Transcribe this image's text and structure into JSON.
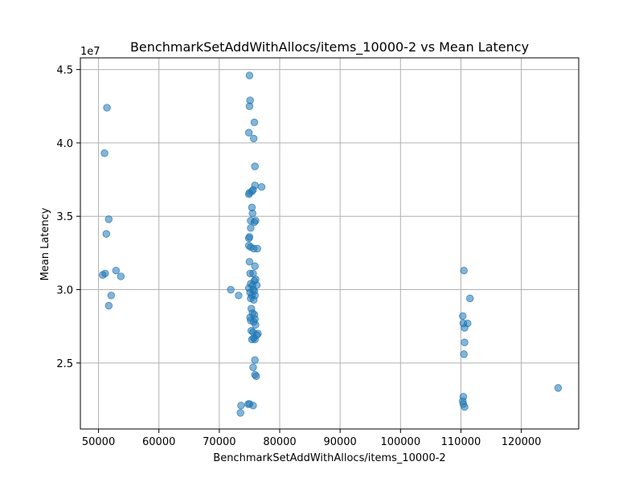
{
  "chart_data": {
    "type": "scatter",
    "title": "BenchmarkSetAddWithAllocs/items_10000-2 vs Mean Latency",
    "xlabel": "BenchmarkSetAddWithAllocs/items_10000-2",
    "ylabel": "Mean Latency",
    "y_offset_label": "1e7",
    "xlim": [
      47000,
      129500
    ],
    "ylim": [
      20500000,
      45800000
    ],
    "xticks": [
      50000,
      60000,
      70000,
      80000,
      90000,
      100000,
      110000,
      120000
    ],
    "xtick_labels": [
      "50000",
      "60000",
      "70000",
      "80000",
      "90000",
      "100000",
      "110000",
      "120000"
    ],
    "yticks": [
      25000000,
      30000000,
      35000000,
      40000000,
      45000000
    ],
    "ytick_labels": [
      "2.5",
      "3.0",
      "3.5",
      "4.0",
      "4.5"
    ],
    "grid": true,
    "point_color": "#1f77b4",
    "point_alpha": 0.55,
    "points": [
      [
        51400,
        42400000
      ],
      [
        51000,
        39300000
      ],
      [
        51700,
        34800000
      ],
      [
        51300,
        33800000
      ],
      [
        51100,
        31100000
      ],
      [
        50700,
        31000000
      ],
      [
        52900,
        31300000
      ],
      [
        53700,
        30900000
      ],
      [
        52100,
        29600000
      ],
      [
        51700,
        28900000
      ],
      [
        71900,
        30000000
      ],
      [
        73200,
        29600000
      ],
      [
        73600,
        22100000
      ],
      [
        73500,
        21600000
      ],
      [
        74800,
        22200000
      ],
      [
        75000,
        22200000
      ],
      [
        75600,
        22100000
      ],
      [
        75000,
        44600000
      ],
      [
        75100,
        42900000
      ],
      [
        75000,
        42500000
      ],
      [
        75800,
        41400000
      ],
      [
        74900,
        40700000
      ],
      [
        75700,
        40300000
      ],
      [
        75900,
        38400000
      ],
      [
        75900,
        37100000
      ],
      [
        77000,
        37000000
      ],
      [
        75600,
        36800000
      ],
      [
        75400,
        36700000
      ],
      [
        75000,
        36600000
      ],
      [
        74900,
        36500000
      ],
      [
        75400,
        35600000
      ],
      [
        75500,
        35200000
      ],
      [
        76000,
        34700000
      ],
      [
        75200,
        34700000
      ],
      [
        75800,
        34600000
      ],
      [
        75200,
        34200000
      ],
      [
        75000,
        33600000
      ],
      [
        74900,
        33500000
      ],
      [
        74900,
        33000000
      ],
      [
        75200,
        32900000
      ],
      [
        75700,
        32800000
      ],
      [
        76300,
        32800000
      ],
      [
        75000,
        31900000
      ],
      [
        75900,
        31600000
      ],
      [
        75600,
        31100000
      ],
      [
        75100,
        31100000
      ],
      [
        76000,
        30700000
      ],
      [
        75800,
        30600000
      ],
      [
        75200,
        30400000
      ],
      [
        75500,
        30300000
      ],
      [
        76200,
        30300000
      ],
      [
        74900,
        30100000
      ],
      [
        75600,
        30000000
      ],
      [
        75800,
        29900000
      ],
      [
        75100,
        29800000
      ],
      [
        75400,
        29600000
      ],
      [
        75900,
        29600000
      ],
      [
        75200,
        29400000
      ],
      [
        75700,
        29300000
      ],
      [
        75300,
        28700000
      ],
      [
        75500,
        28400000
      ],
      [
        75800,
        28300000
      ],
      [
        75100,
        28100000
      ],
      [
        75900,
        28000000
      ],
      [
        75200,
        27900000
      ],
      [
        75700,
        27800000
      ],
      [
        76000,
        27600000
      ],
      [
        75300,
        27200000
      ],
      [
        75600,
        27100000
      ],
      [
        76400,
        27000000
      ],
      [
        76200,
        26900000
      ],
      [
        75400,
        26600000
      ],
      [
        75900,
        26600000
      ],
      [
        75700,
        26700000
      ],
      [
        75900,
        25200000
      ],
      [
        75600,
        24700000
      ],
      [
        75900,
        24200000
      ],
      [
        76100,
        24100000
      ],
      [
        110500,
        31300000
      ],
      [
        111500,
        29400000
      ],
      [
        110300,
        28200000
      ],
      [
        110400,
        27700000
      ],
      [
        111100,
        27700000
      ],
      [
        110600,
        27400000
      ],
      [
        110600,
        26400000
      ],
      [
        110500,
        25600000
      ],
      [
        110400,
        22700000
      ],
      [
        110300,
        22400000
      ],
      [
        110400,
        22200000
      ],
      [
        110600,
        22000000
      ],
      [
        126100,
        23300000
      ]
    ]
  }
}
